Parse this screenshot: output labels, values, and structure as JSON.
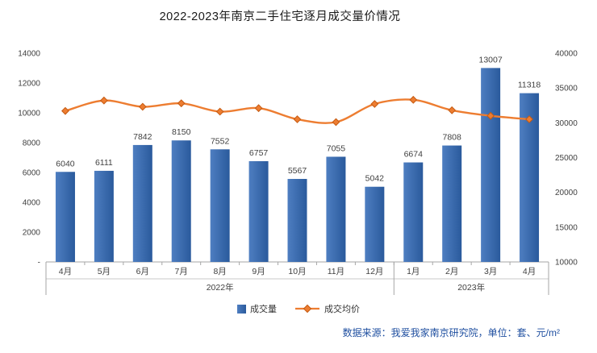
{
  "title": "2022-2023年南京二手住宅逐月成交量价情况",
  "legend": {
    "volume": "成交量",
    "price": "成交均价"
  },
  "footer": "数据来源：我爱我家南京研究院，单位：套、元/m²",
  "colors": {
    "bar_gradient_start": "#4E7EC1",
    "bar_gradient_end": "#2A5A9C",
    "line": "#ED7D31",
    "marker_stroke": "#C55A11",
    "axis": "#A6A6A6",
    "text": "#404040",
    "footer_text": "#1F4FA0"
  },
  "chart_data": {
    "type": "combo",
    "title": "2022-2023年南京二手住宅逐月成交量价情况",
    "categories": [
      "4月",
      "5月",
      "6月",
      "7月",
      "8月",
      "9月",
      "10月",
      "11月",
      "12月",
      "1月",
      "2月",
      "3月",
      "4月"
    ],
    "year_groups": [
      {
        "label": "2022年",
        "span": 9
      },
      {
        "label": "2023年",
        "span": 4
      }
    ],
    "series": [
      {
        "name": "成交量",
        "type": "bar",
        "axis": "left",
        "values": [
          6040,
          6111,
          7842,
          8150,
          7552,
          6757,
          5567,
          7055,
          5042,
          6674,
          7808,
          13007,
          11318
        ]
      },
      {
        "name": "成交均价",
        "type": "line",
        "axis": "right",
        "values": [
          31700,
          33200,
          32300,
          32800,
          31600,
          32100,
          30500,
          30100,
          32700,
          33300,
          31800,
          31000,
          30500
        ]
      }
    ],
    "left_axis": {
      "min": 0,
      "max": 14000,
      "step": 2000,
      "labels": [
        "-",
        "2000",
        "4000",
        "6000",
        "8000",
        "10000",
        "12000",
        "14000"
      ]
    },
    "right_axis": {
      "min": 10000,
      "max": 40000,
      "step": 5000,
      "labels": [
        "10000",
        "15000",
        "20000",
        "25000",
        "30000",
        "35000",
        "40000"
      ]
    },
    "grid": "off",
    "legend_position": "bottom"
  }
}
